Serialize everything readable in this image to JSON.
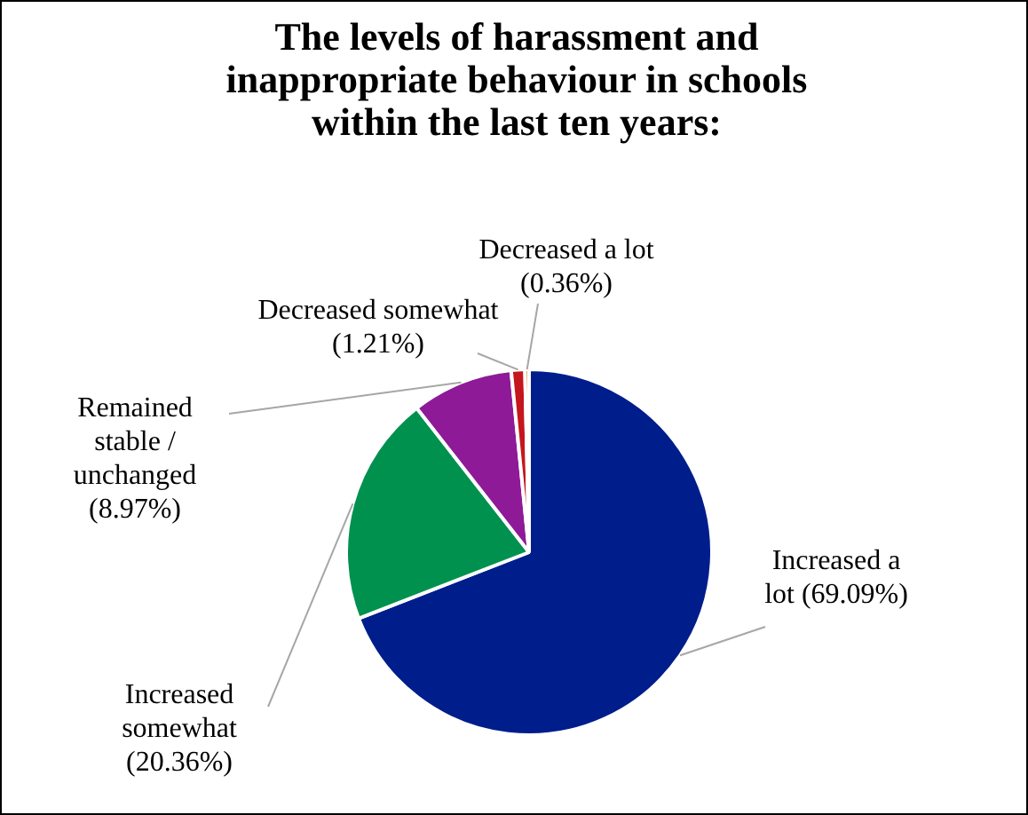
{
  "chart_data": {
    "type": "pie",
    "title": "The levels of harassment and inappropriate behaviour in schools within the last ten years:",
    "categories": [
      "Increased a lot",
      "Increased somewhat",
      "Remained stable / unchanged",
      "Decreased somewhat",
      "Decreased a lot"
    ],
    "values": [
      69.09,
      20.36,
      8.97,
      1.21,
      0.36
    ],
    "value_labels": [
      "(69.09%)",
      "(20.36%)",
      "(8.97%)",
      "(1.21%)",
      "(0.36%)"
    ],
    "colors": [
      "#001d8c",
      "#00914f",
      "#8e1a98",
      "#c4161c",
      "#e36c0a"
    ],
    "legend": false
  }
}
